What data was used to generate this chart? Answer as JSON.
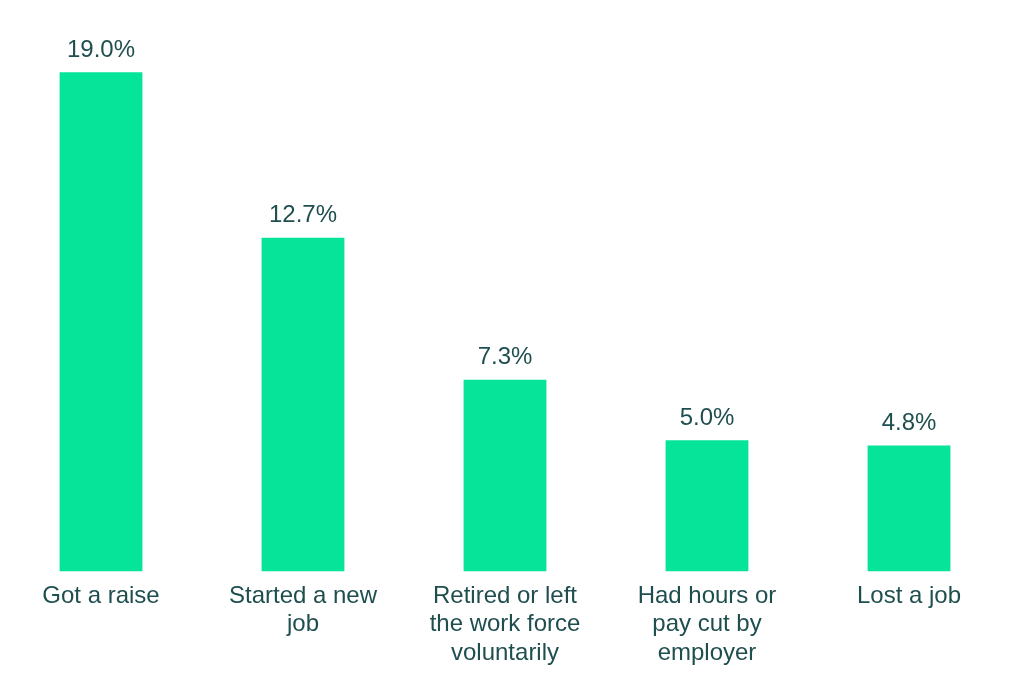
{
  "chart_data": {
    "type": "bar",
    "categories": [
      "Got a raise",
      "Started a new job",
      "Retired or left the work force voluntarily",
      "Had hours or pay cut by employer",
      "Lost a job"
    ],
    "values": [
      19.0,
      12.7,
      7.3,
      5.0,
      4.8
    ],
    "value_labels": [
      "19.0%",
      "12.7%",
      "7.3%",
      "5.0%",
      "4.8%"
    ],
    "color": "#06e49a",
    "grid": false,
    "legend": false
  }
}
